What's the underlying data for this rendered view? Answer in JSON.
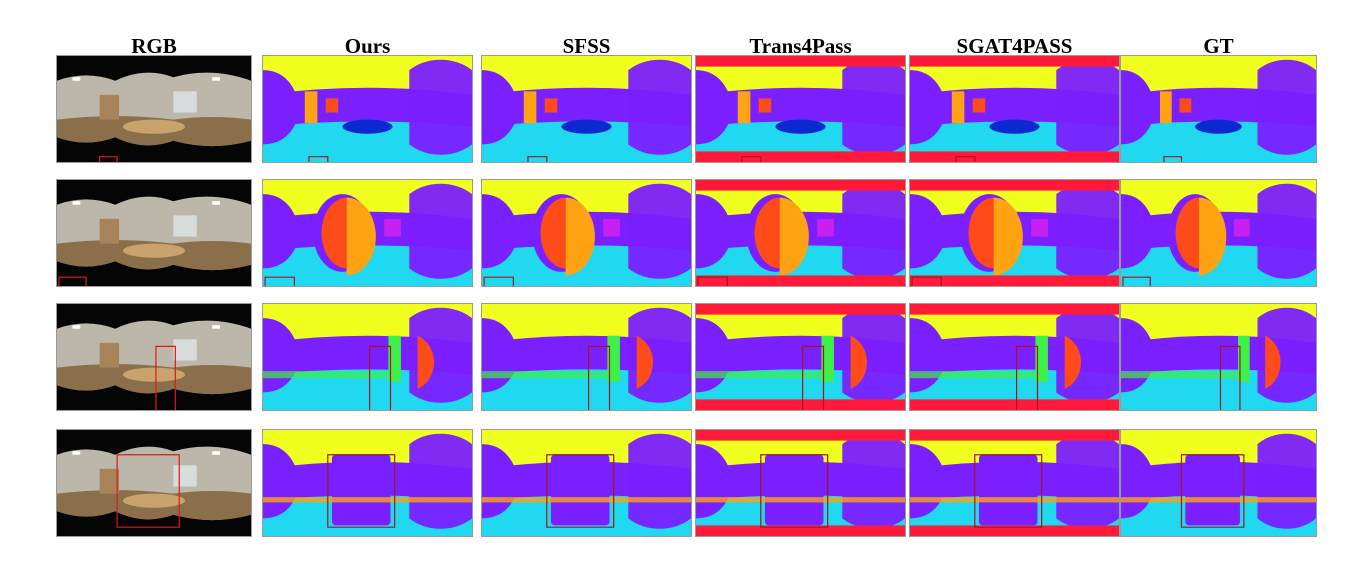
{
  "figure": {
    "columns": [
      {
        "key": "rgb",
        "label": "RGB"
      },
      {
        "key": "ours",
        "label": "Ours"
      },
      {
        "key": "sfss",
        "label": "SFSS"
      },
      {
        "key": "trans4pass",
        "label": "Trans4Pass"
      },
      {
        "key": "sgat4pass",
        "label": "SGAT4PASS"
      },
      {
        "key": "gt",
        "label": "GT"
      }
    ],
    "rows": 4
  },
  "palette": {
    "ceiling": "#f0ff1e",
    "wall": "#7a1fff",
    "floor": "#20d8f0",
    "door": "#ff4b1a",
    "board": "#ffa312",
    "chair": "#3ef048",
    "table": "#0a2ad0",
    "window": "#c820f0",
    "void": "#ff1a3a",
    "highlight_box": "#a01818"
  }
}
